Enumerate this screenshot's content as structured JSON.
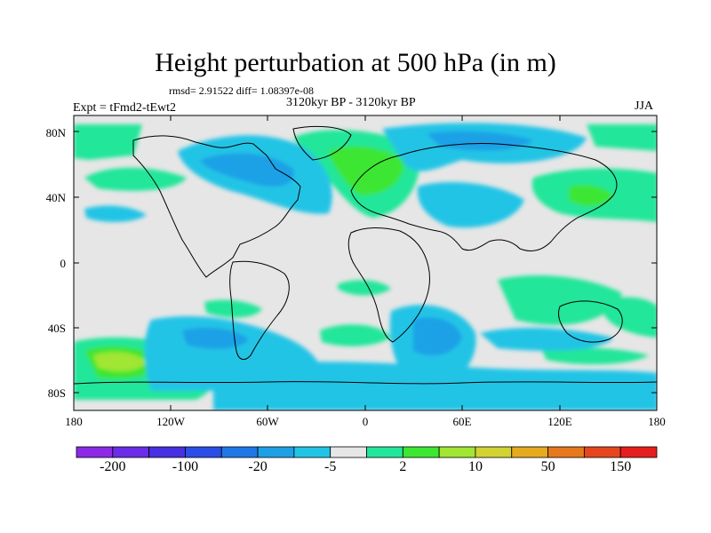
{
  "title": "Height perturbation at 500 hPa (in m)",
  "stats": "rmsd= 2.91522  diff= 1.08397e-08",
  "period": "3120kyr BP - 3120kyr BP",
  "expt": "Expt = tFmd2-tEwt2",
  "season": "JJA",
  "lat_labels": [
    "80N",
    "40N",
    "0",
    "40S",
    "80S"
  ],
  "lon_labels": [
    "180",
    "120W",
    "60W",
    "0",
    "60E",
    "120E",
    "180"
  ],
  "colorbar": {
    "colors": [
      "#8c2ae6",
      "#6a2ce6",
      "#4630e2",
      "#2a4ee6",
      "#1e78e6",
      "#1ea0e6",
      "#22c4e6",
      "#e6e6e6",
      "#22e69a",
      "#3ce632",
      "#a0e632",
      "#d2d232",
      "#e6aa1e",
      "#e6781e",
      "#e6461e",
      "#e61e1e"
    ],
    "labels": [
      "-200",
      "-100",
      "-20",
      "-5",
      "2",
      "10",
      "50",
      "150"
    ]
  },
  "colors": {
    "neutral": "#e6e6e6",
    "pos_light": "#22e69a",
    "pos_mid": "#3ce632",
    "pos_strong": "#a0e632",
    "neg_light": "#22c4e6",
    "neg_mid": "#1ea0e6",
    "neg_strong": "#1e78e6"
  }
}
